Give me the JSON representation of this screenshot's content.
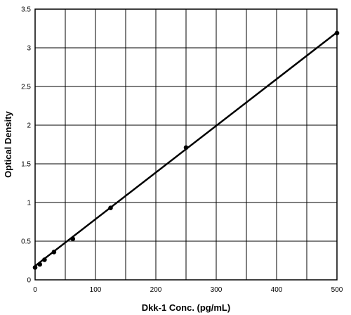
{
  "chart_data": {
    "type": "scatter",
    "title": "",
    "xlabel": "Dkk-1 Conc. (pg/mL)",
    "ylabel": "Optical Density",
    "xlim": [
      0,
      500
    ],
    "ylim": [
      0,
      3.5
    ],
    "x_ticks": [
      0,
      100,
      200,
      300,
      400,
      500
    ],
    "y_ticks": [
      0,
      0.5,
      1,
      1.5,
      2,
      2.5,
      3,
      3.5
    ],
    "x_tick_labels": [
      "0",
      "100",
      "200",
      "300",
      "400",
      "500"
    ],
    "y_tick_labels": [
      "0",
      "0.5",
      "1",
      "1.5",
      "2",
      "2.5",
      "3",
      "3.5"
    ],
    "x_grid_step": 50,
    "y_grid_step": 0.5,
    "grid": true,
    "series": [
      {
        "points": [
          {
            "x": 0,
            "y": 0.16
          },
          {
            "x": 7.8,
            "y": 0.2
          },
          {
            "x": 15.6,
            "y": 0.26
          },
          {
            "x": 31.3,
            "y": 0.36
          },
          {
            "x": 62.5,
            "y": 0.53
          },
          {
            "x": 125,
            "y": 0.93
          },
          {
            "x": 250,
            "y": 1.71
          },
          {
            "x": 500,
            "y": 3.19
          }
        ],
        "fit_line": {
          "x": [
            0,
            500
          ],
          "y": [
            0.18,
            3.2
          ]
        },
        "color": "#000000"
      }
    ]
  }
}
